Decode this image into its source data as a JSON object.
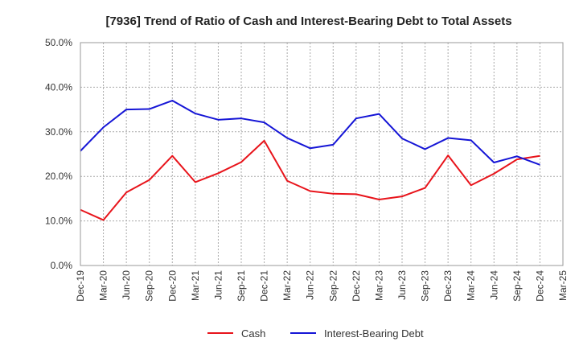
{
  "chart_data": {
    "type": "line",
    "title": "[7936]  Trend of Ratio of Cash and Interest-Bearing Debt to Total Assets",
    "xlabel": "",
    "ylabel": "",
    "ylim": [
      0,
      50
    ],
    "y_ticks": [
      "0.0%",
      "10.0%",
      "20.0%",
      "30.0%",
      "40.0%",
      "50.0%"
    ],
    "x_ticks": [
      "Dec-19",
      "Mar-20",
      "Jun-20",
      "Sep-20",
      "Dec-20",
      "Mar-21",
      "Jun-21",
      "Sep-21",
      "Dec-21",
      "Mar-22",
      "Jun-22",
      "Sep-22",
      "Dec-22",
      "Mar-23",
      "Jun-23",
      "Sep-23",
      "Dec-23",
      "Mar-24",
      "Jun-24",
      "Sep-24",
      "Dec-24",
      "Mar-25"
    ],
    "x": [
      "Dec-19",
      "Mar-20",
      "Jun-20",
      "Sep-20",
      "Dec-20",
      "Mar-21",
      "Jun-21",
      "Sep-21",
      "Dec-21",
      "Mar-22",
      "Jun-22",
      "Sep-22",
      "Dec-22",
      "Mar-23",
      "Jun-23",
      "Sep-23",
      "Dec-23",
      "Mar-24",
      "Jun-24",
      "Sep-24",
      "Dec-24"
    ],
    "grid": true,
    "legend_position": "bottom",
    "series": [
      {
        "name": "Cash",
        "color": "#e8141b",
        "values": [
          12.5,
          10.2,
          16.4,
          19.2,
          24.6,
          18.7,
          20.7,
          23.2,
          28.0,
          19.0,
          16.7,
          16.1,
          16.0,
          14.8,
          15.5,
          17.4,
          24.7,
          18.0,
          20.6,
          23.8,
          24.6
        ]
      },
      {
        "name": "Interest-Bearing Debt",
        "color": "#1515d6",
        "values": [
          25.7,
          31.0,
          35.0,
          35.1,
          37.0,
          34.1,
          32.7,
          33.0,
          32.1,
          28.6,
          26.3,
          27.1,
          33.0,
          34.0,
          28.5,
          26.1,
          28.6,
          28.1,
          23.1,
          24.5,
          22.6
        ]
      }
    ]
  }
}
